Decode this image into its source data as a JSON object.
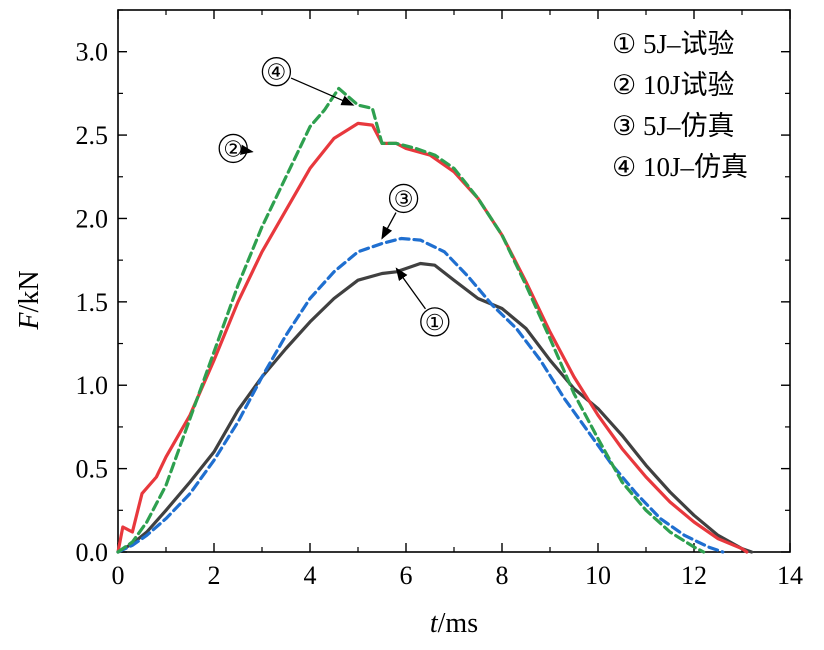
{
  "chart_data": {
    "type": "line",
    "xlabel_var": "t",
    "xlabel_unit": "/ms",
    "ylabel_var": "F",
    "ylabel_unit": "/kN",
    "xlim": [
      0,
      14
    ],
    "ylim": [
      0,
      3.25
    ],
    "xticks": [
      0,
      2,
      4,
      6,
      8,
      10,
      12,
      14
    ],
    "xtick_labels": [
      "0",
      "2",
      "4",
      "6",
      "8",
      "10",
      "12",
      "14"
    ],
    "yticks": [
      0,
      0.5,
      1.0,
      1.5,
      2.0,
      2.5,
      3.0
    ],
    "ytick_labels": [
      "0.0",
      "0.5",
      "1.0",
      "1.5",
      "2.0",
      "2.5",
      "3.0"
    ],
    "legend_position": "top-right",
    "series": [
      {
        "name": "① 5J–试验",
        "color": "#404040",
        "dash": "solid",
        "x": [
          0,
          0.3,
          0.6,
          1,
          1.5,
          2,
          2.5,
          3,
          3.5,
          4,
          4.5,
          5,
          5.5,
          5.8,
          6,
          6.3,
          6.6,
          7,
          7.5,
          8,
          8.5,
          9,
          9.5,
          10,
          10.5,
          11,
          11.5,
          12,
          12.5,
          13,
          13.2
        ],
        "y": [
          0,
          0.05,
          0.12,
          0.25,
          0.42,
          0.6,
          0.85,
          1.05,
          1.22,
          1.38,
          1.52,
          1.63,
          1.67,
          1.68,
          1.7,
          1.73,
          1.72,
          1.63,
          1.52,
          1.46,
          1.34,
          1.15,
          0.98,
          0.86,
          0.7,
          0.52,
          0.36,
          0.22,
          0.1,
          0.02,
          0
        ]
      },
      {
        "name": "② 10J试验",
        "color": "#e8383d",
        "dash": "solid",
        "x": [
          0,
          0.1,
          0.3,
          0.5,
          0.8,
          1,
          1.5,
          2,
          2.5,
          3,
          3.5,
          4,
          4.5,
          5,
          5.3,
          5.5,
          5.8,
          6,
          6.5,
          7,
          7.5,
          8,
          8.5,
          9,
          9.5,
          10,
          10.5,
          11,
          11.5,
          12,
          12.5,
          13,
          13.1
        ],
        "y": [
          0,
          0.15,
          0.12,
          0.35,
          0.45,
          0.57,
          0.82,
          1.15,
          1.5,
          1.8,
          2.05,
          2.3,
          2.48,
          2.57,
          2.56,
          2.45,
          2.45,
          2.42,
          2.38,
          2.28,
          2.12,
          1.9,
          1.62,
          1.32,
          1.05,
          0.82,
          0.62,
          0.45,
          0.3,
          0.18,
          0.08,
          0.02,
          0
        ]
      },
      {
        "name": "③ 5J–仿真",
        "color": "#1f6fd0",
        "dash": "dashed",
        "x": [
          0,
          0.3,
          0.6,
          1,
          1.5,
          2,
          2.5,
          3,
          3.5,
          4,
          4.5,
          5,
          5.5,
          5.9,
          6.3,
          6.8,
          7.3,
          7.8,
          8.3,
          8.8,
          9.3,
          9.8,
          10.3,
          10.8,
          11.3,
          11.8,
          12.3,
          12.6
        ],
        "y": [
          0,
          0.04,
          0.1,
          0.2,
          0.35,
          0.55,
          0.78,
          1.05,
          1.3,
          1.52,
          1.68,
          1.8,
          1.85,
          1.88,
          1.87,
          1.8,
          1.65,
          1.48,
          1.34,
          1.15,
          0.92,
          0.72,
          0.52,
          0.35,
          0.2,
          0.1,
          0.03,
          0
        ]
      },
      {
        "name": "④ 10J–仿真",
        "color": "#2ea04f",
        "dash": "dashed",
        "x": [
          0,
          0.3,
          0.6,
          1,
          1.5,
          2,
          2.5,
          3,
          3.5,
          4,
          4.3,
          4.6,
          5,
          5.3,
          5.5,
          5.8,
          6.2,
          6.6,
          7,
          7.5,
          8,
          8.5,
          9,
          9.5,
          10,
          10.5,
          11,
          11.5,
          12,
          12.2
        ],
        "y": [
          0,
          0.06,
          0.18,
          0.4,
          0.8,
          1.2,
          1.6,
          1.95,
          2.25,
          2.55,
          2.65,
          2.78,
          2.68,
          2.66,
          2.45,
          2.45,
          2.42,
          2.38,
          2.3,
          2.12,
          1.9,
          1.6,
          1.28,
          0.95,
          0.68,
          0.42,
          0.25,
          0.12,
          0.03,
          0
        ]
      }
    ],
    "annotations": [
      {
        "label": "①",
        "point_x": 5.8,
        "point_y": 1.7,
        "text_x": 6.6,
        "text_y": 1.38
      },
      {
        "label": "②",
        "point_x": 2.8,
        "point_y": 2.4,
        "text_x": 2.4,
        "text_y": 2.42
      },
      {
        "label": "③",
        "point_x": 5.5,
        "point_y": 1.88,
        "text_x": 5.95,
        "text_y": 2.12
      },
      {
        "label": "④",
        "point_x": 4.9,
        "point_y": 2.68,
        "text_x": 3.3,
        "text_y": 2.88
      }
    ]
  }
}
